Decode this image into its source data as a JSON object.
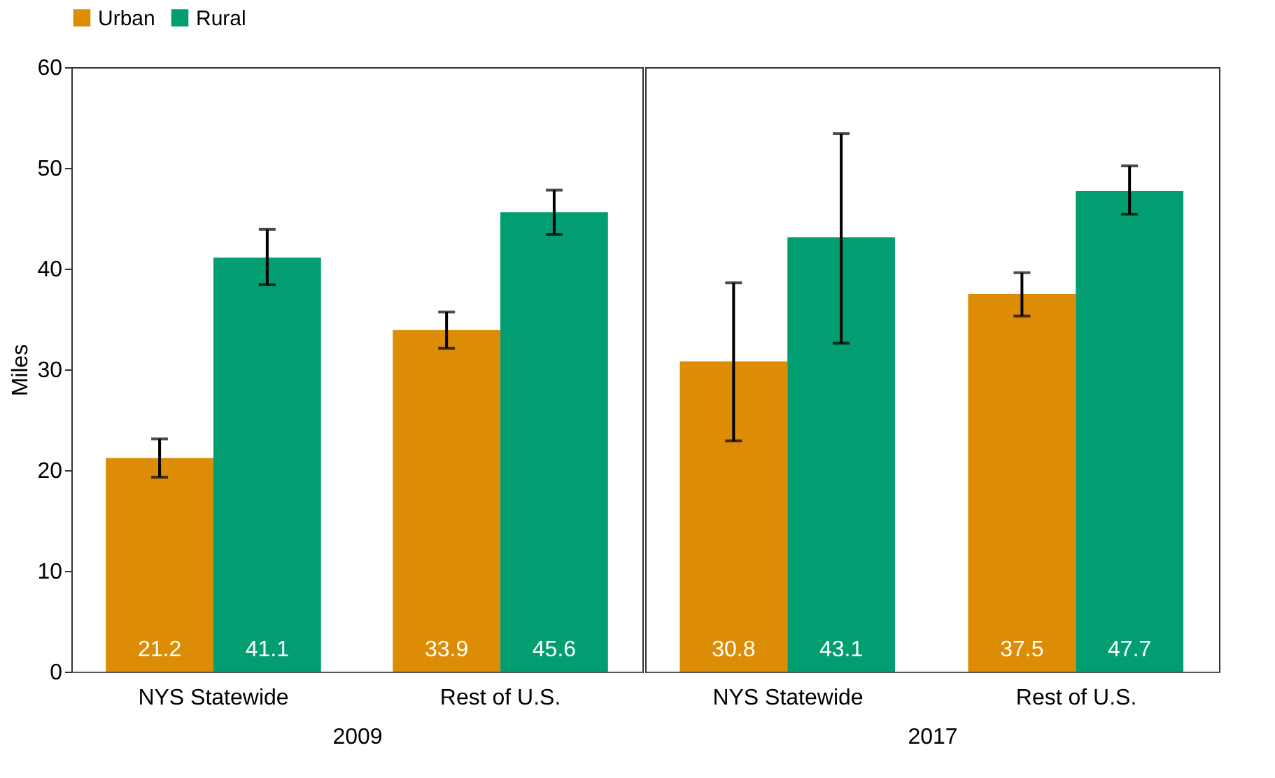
{
  "chart_data": [
    {
      "type": "bar",
      "xlabel": "2009",
      "ylabel": "Miles",
      "categories": [
        "NYS Statewide",
        "Rest of U.S."
      ],
      "series": [
        {
          "name": "Urban",
          "color": "#dd8c05",
          "values": [
            21.2,
            33.9
          ],
          "errors": [
            [
              19.3,
              23.1
            ],
            [
              32.1,
              35.7
            ]
          ]
        },
        {
          "name": "Rural",
          "color": "#029e72",
          "values": [
            41.1,
            45.6
          ],
          "errors": [
            [
              38.4,
              43.9
            ],
            [
              43.4,
              47.8
            ]
          ]
        }
      ],
      "ylim": [
        0,
        60
      ],
      "yticks": [
        0,
        10,
        20,
        30,
        40,
        50,
        60
      ],
      "grid": false,
      "legend": "top",
      "data_labels": true
    },
    {
      "type": "bar",
      "xlabel": "2017",
      "categories": [
        "NYS Statewide",
        "Rest of U.S."
      ],
      "series": [
        {
          "name": "Urban",
          "color": "#dd8c05",
          "values": [
            30.8,
            37.5
          ],
          "errors": [
            [
              22.9,
              38.6
            ],
            [
              35.3,
              39.6
            ]
          ]
        },
        {
          "name": "Rural",
          "color": "#029e72",
          "values": [
            43.1,
            47.7
          ],
          "errors": [
            [
              32.6,
              53.4
            ],
            [
              45.4,
              50.2
            ]
          ]
        }
      ],
      "ylim": [
        0,
        60
      ],
      "yticks": [
        0,
        10,
        20,
        30,
        40,
        50,
        60
      ],
      "grid": false,
      "legend": "top",
      "data_labels": true,
      "tick_labels": "x"
    }
  ]
}
